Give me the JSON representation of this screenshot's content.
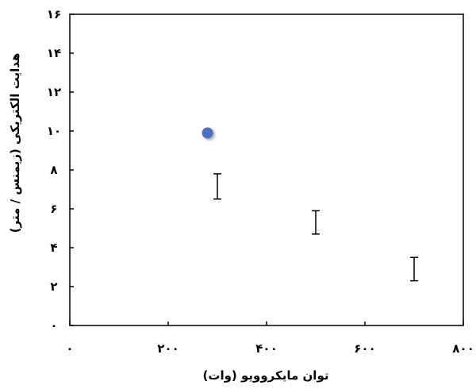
{
  "chart_data": {
    "type": "scatter",
    "xlabel": "توان مایکروویو (وات)",
    "ylabel": "هدایت الکتریکی (زیمنس / متر)",
    "xlim": [
      0,
      800
    ],
    "ylim": [
      0,
      16
    ],
    "x_ticks": [
      0,
      200,
      400,
      600,
      800
    ],
    "y_ticks": [
      0,
      2,
      4,
      6,
      8,
      10,
      12,
      14,
      16
    ],
    "x_tick_labels": [
      "۰",
      "۲۰۰",
      "۴۰۰",
      "۶۰۰",
      "۸۰۰"
    ],
    "y_tick_labels": [
      "۰",
      "۲",
      "۴",
      "۶",
      "۸",
      "۱۰",
      "۱۲",
      "۱۴",
      "۱۶"
    ],
    "grid": false,
    "series": [
      {
        "points": [
          {
            "x": 280,
            "y": 9.9,
            "marker": "circle",
            "color": "#4472C4"
          },
          {
            "x": 300,
            "y": 7.2,
            "marker": "none",
            "err_low": 6.5,
            "err_high": 7.8
          },
          {
            "x": 500,
            "y": 5.3,
            "marker": "none",
            "err_low": 4.7,
            "err_high": 5.9
          },
          {
            "x": 700,
            "y": 2.9,
            "marker": "none",
            "err_low": 2.3,
            "err_high": 3.5
          }
        ]
      }
    ]
  }
}
